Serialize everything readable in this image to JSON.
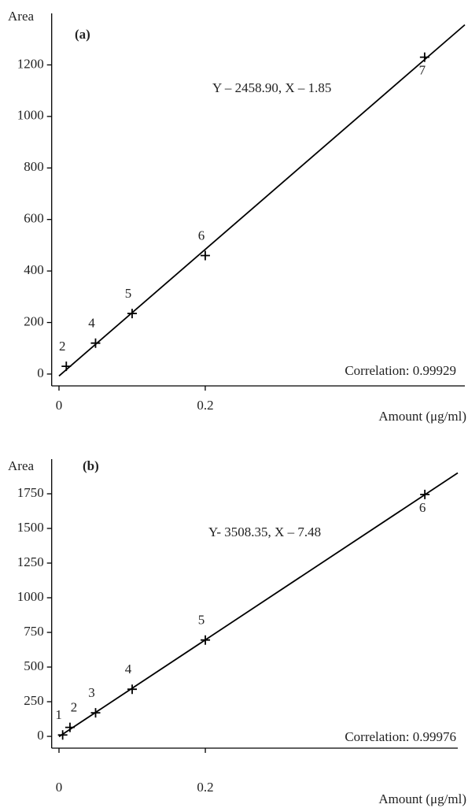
{
  "chart_data": [
    {
      "type": "scatter",
      "title": "(a)",
      "y_label": "Area",
      "x_label": "Amount (μg/ml)",
      "equation": "Y – 2458.90, X – 1.85",
      "correlation": "Correlation: 0.99929",
      "x": [
        0.01,
        0.05,
        0.1,
        0.2,
        0.5
      ],
      "values": [
        30,
        120,
        235,
        460,
        1230
      ],
      "point_labels": [
        "2",
        "4",
        "5",
        "6",
        "7"
      ],
      "xlim": [
        -0.01,
        0.555
      ],
      "ylim": [
        -46,
        1400
      ],
      "xticks": [
        0,
        0.2
      ],
      "yticks": [
        0,
        200,
        400,
        600,
        800,
        1000,
        1200
      ],
      "color": "#000000",
      "fit_line": true
    },
    {
      "type": "scatter",
      "title": "(b)",
      "y_label": "Area",
      "x_label": "Amount (μg/ml)",
      "equation": "Y- 3508.35, X – 7.48",
      "correlation": "Correlation: 0.99976",
      "x": [
        0.005,
        0.015,
        0.05,
        0.1,
        0.2,
        0.5
      ],
      "values": [
        10,
        65,
        170,
        340,
        695,
        1745
      ],
      "point_labels": [
        "1",
        "2",
        "3",
        "4",
        "5",
        "6"
      ],
      "xlim": [
        -0.01,
        0.545
      ],
      "ylim": [
        -85,
        2000
      ],
      "xticks": [
        0,
        0.2
      ],
      "yticks": [
        0,
        250,
        500,
        750,
        1000,
        1250,
        1500,
        1750
      ],
      "color": "#000000",
      "fit_line": true
    }
  ]
}
